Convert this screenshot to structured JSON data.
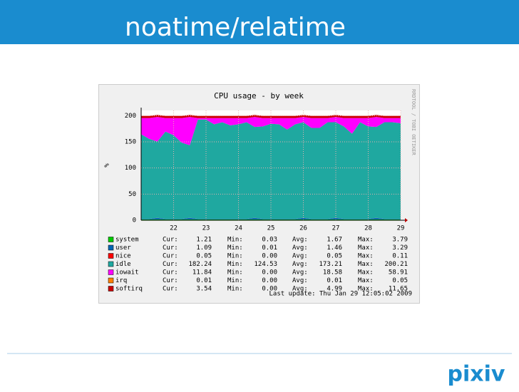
{
  "slide": {
    "title": "noatime/relatime",
    "logo": "pixiv"
  },
  "chart_data": {
    "type": "stacked-area",
    "title": "CPU usage - by week",
    "y_label": "%",
    "watermark": "RRDTOOL / TOBI OETIKER",
    "last_update": "Last update: Thu Jan 29 12:05:02 2009",
    "x": [
      21,
      21.25,
      21.5,
      21.75,
      22,
      22.25,
      22.5,
      22.75,
      23,
      23.25,
      23.5,
      23.75,
      24,
      24.25,
      24.5,
      24.75,
      25,
      25.25,
      25.5,
      25.75,
      26,
      26.25,
      26.5,
      26.75,
      27,
      27.25,
      27.5,
      27.75,
      28,
      28.25,
      28.5,
      28.75,
      29
    ],
    "xlim": [
      21,
      29
    ],
    "xticks": [
      22,
      23,
      24,
      25,
      26,
      27,
      28,
      29
    ],
    "ylim": [
      0,
      210
    ],
    "yticks": [
      0,
      50,
      100,
      150,
      200
    ],
    "grid": true,
    "series": [
      {
        "name": "system",
        "color": "#00cc00",
        "values": [
          1.5,
          1.5,
          1.5,
          1.5,
          1.5,
          1.5,
          1.5,
          1.5,
          1.5,
          1.5,
          1.5,
          1.5,
          1.5,
          1.5,
          1.5,
          1.5,
          1.5,
          1.5,
          1.5,
          1.5,
          1.5,
          1.5,
          1.5,
          1.5,
          1.5,
          1.5,
          1.5,
          1.5,
          1.5,
          1.5,
          1.5,
          1.5,
          1.5
        ]
      },
      {
        "name": "user",
        "color": "#0066b3",
        "values": [
          1,
          1,
          3,
          1,
          1,
          1,
          3,
          1,
          1,
          1,
          1,
          1,
          1,
          1,
          3,
          1,
          1,
          1,
          1,
          1,
          3,
          1,
          1,
          1,
          3,
          1,
          1,
          1,
          1,
          3,
          1,
          1,
          1
        ]
      },
      {
        "name": "nice",
        "color": "#ff0000",
        "values": [
          0.05,
          0.05,
          0.05,
          0.05,
          0.05,
          0.05,
          0.05,
          0.05,
          0.05,
          0.05,
          0.05,
          0.05,
          0.05,
          0.05,
          0.05,
          0.05,
          0.05,
          0.05,
          0.05,
          0.05,
          0.05,
          0.05,
          0.05,
          0.05,
          0.05,
          0.05,
          0.05,
          0.05,
          0.05,
          0.05,
          0.05,
          0.05,
          0.05
        ]
      },
      {
        "name": "idle",
        "color": "#1fa8a0",
        "values": [
          162,
          153,
          146,
          167,
          160,
          146,
          139,
          190,
          190,
          181,
          185,
          179,
          181,
          185,
          174,
          177,
          182,
          181,
          171,
          181,
          183,
          174,
          174,
          185,
          183,
          177,
          163,
          185,
          177,
          174,
          185,
          185,
          183
        ]
      },
      {
        "name": "iowait",
        "color": "#ff00ff",
        "values": [
          31,
          40,
          47,
          26,
          33,
          47,
          54,
          3,
          3,
          12,
          8,
          14,
          12,
          8,
          19,
          16,
          11,
          12,
          22,
          12,
          10,
          19,
          19,
          8,
          10,
          16,
          30,
          8,
          16,
          19,
          8,
          8,
          10
        ]
      },
      {
        "name": "irq",
        "color": "#ff8000",
        "values": [
          0.01,
          0.01,
          0.01,
          0.01,
          0.01,
          0.01,
          0.01,
          0.01,
          0.01,
          0.01,
          0.01,
          0.01,
          0.01,
          0.01,
          0.01,
          0.01,
          0.01,
          0.01,
          0.01,
          0.01,
          0.01,
          0.01,
          0.01,
          0.01,
          0.01,
          0.01,
          0.01,
          0.01,
          0.01,
          0.01,
          0.01,
          0.01,
          0.01
        ]
      },
      {
        "name": "softirq",
        "color": "#cc0000",
        "values": [
          4,
          4,
          4,
          4,
          4,
          4,
          4,
          4,
          4,
          4,
          4,
          4,
          4,
          4,
          4,
          4,
          4,
          4,
          4,
          4,
          4,
          4,
          4,
          4,
          4,
          4,
          4,
          4,
          4,
          4,
          4,
          4,
          4
        ]
      }
    ]
  },
  "legend_table": {
    "columns": [
      "Cur:",
      "Min:",
      "Avg:",
      "Max:"
    ],
    "rows": [
      [
        "1.21",
        "0.03",
        "1.67",
        "3.79"
      ],
      [
        "1.09",
        "0.01",
        "1.46",
        "3.29"
      ],
      [
        "0.05",
        "0.00",
        "0.05",
        "0.11"
      ],
      [
        "182.24",
        "124.53",
        "173.21",
        "200.21"
      ],
      [
        "11.84",
        "0.00",
        "18.58",
        "58.91"
      ],
      [
        "0.01",
        "0.00",
        "0.01",
        "0.05"
      ],
      [
        "3.54",
        "0.00",
        "4.99",
        "11.65"
      ]
    ]
  }
}
